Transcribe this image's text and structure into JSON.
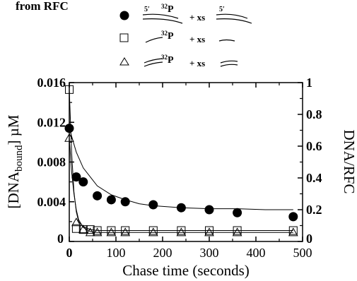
{
  "chart_data": {
    "type": "scatter",
    "title": "from RFC",
    "xlabel": "Chase time (seconds)",
    "ylabel_left": "[DNAbound] µM",
    "ylabel_left_base": "[DNA",
    "ylabel_left_sub": "bound",
    "ylabel_left_tail": "] µM",
    "ylabel_right": "DNA/RFC",
    "xlim": [
      0,
      500
    ],
    "ylim_left": [
      0,
      0.016
    ],
    "ylim_right": [
      0,
      1
    ],
    "x_ticks": [
      "0",
      "100",
      "200",
      "300",
      "400",
      "500"
    ],
    "y_left_ticks": [
      "0",
      "0.004",
      "0.008",
      "0.012",
      "0.016"
    ],
    "y_right_ticks": [
      "0",
      "0.2",
      "0.4",
      "0.6",
      "0.8",
      "1"
    ],
    "legend_text": {
      "five_prime": "5′",
      "p32": "32P",
      "p32_sup": "32",
      "p32_base": "P",
      "plus_xs": "+ xs"
    },
    "legend_placement": "top-center",
    "series": [
      {
        "marker": "filled-circle",
        "x": [
          0,
          15,
          30,
          60,
          90,
          120,
          180,
          240,
          300,
          360,
          480
        ],
        "y": [
          0.0114,
          0.0065,
          0.006,
          0.0046,
          0.0042,
          0.004,
          0.0037,
          0.0034,
          0.0032,
          0.0029,
          0.0025
        ],
        "fit": [
          [
            0,
            0.0114
          ],
          [
            15,
            0.009
          ],
          [
            30,
            0.0074
          ],
          [
            60,
            0.0056
          ],
          [
            90,
            0.0047
          ],
          [
            120,
            0.0042
          ],
          [
            150,
            0.0038
          ],
          [
            180,
            0.0036
          ],
          [
            240,
            0.0034
          ],
          [
            300,
            0.0033
          ],
          [
            360,
            0.0033
          ],
          [
            420,
            0.0032
          ],
          [
            480,
            0.0032
          ]
        ]
      },
      {
        "marker": "open-square",
        "x": [
          0,
          15,
          30,
          45,
          60,
          90,
          120,
          180,
          240,
          300,
          360,
          480
        ],
        "y": [
          0.0153,
          0.0013,
          0.0012,
          0.0012,
          0.0011,
          0.0011,
          0.0011,
          0.0011,
          0.0011,
          0.0011,
          0.0011,
          0.0011
        ],
        "fit": [
          [
            0,
            0.0153
          ],
          [
            5,
            0.009
          ],
          [
            10,
            0.005
          ],
          [
            15,
            0.003
          ],
          [
            20,
            0.002
          ],
          [
            30,
            0.0015
          ],
          [
            45,
            0.0012
          ],
          [
            60,
            0.0011
          ],
          [
            480,
            0.0011
          ]
        ]
      },
      {
        "marker": "open-triangle",
        "x": [
          0,
          15,
          30,
          45,
          60,
          90,
          120,
          180,
          240,
          300,
          360,
          480
        ],
        "y": [
          0.0104,
          0.0019,
          0.0012,
          0.0009,
          0.0009,
          0.0009,
          0.0009,
          0.0009,
          0.0009,
          0.0009,
          0.0009,
          0.0009
        ],
        "fit": [
          [
            0,
            0.0104
          ],
          [
            5,
            0.007
          ],
          [
            10,
            0.0048
          ],
          [
            15,
            0.0032
          ],
          [
            20,
            0.0022
          ],
          [
            30,
            0.0014
          ],
          [
            45,
            0.001
          ],
          [
            60,
            0.0009
          ],
          [
            480,
            0.0009
          ]
        ]
      }
    ],
    "colors": {
      "ink": "#000000",
      "background": "#ffffff"
    },
    "grid": false
  }
}
